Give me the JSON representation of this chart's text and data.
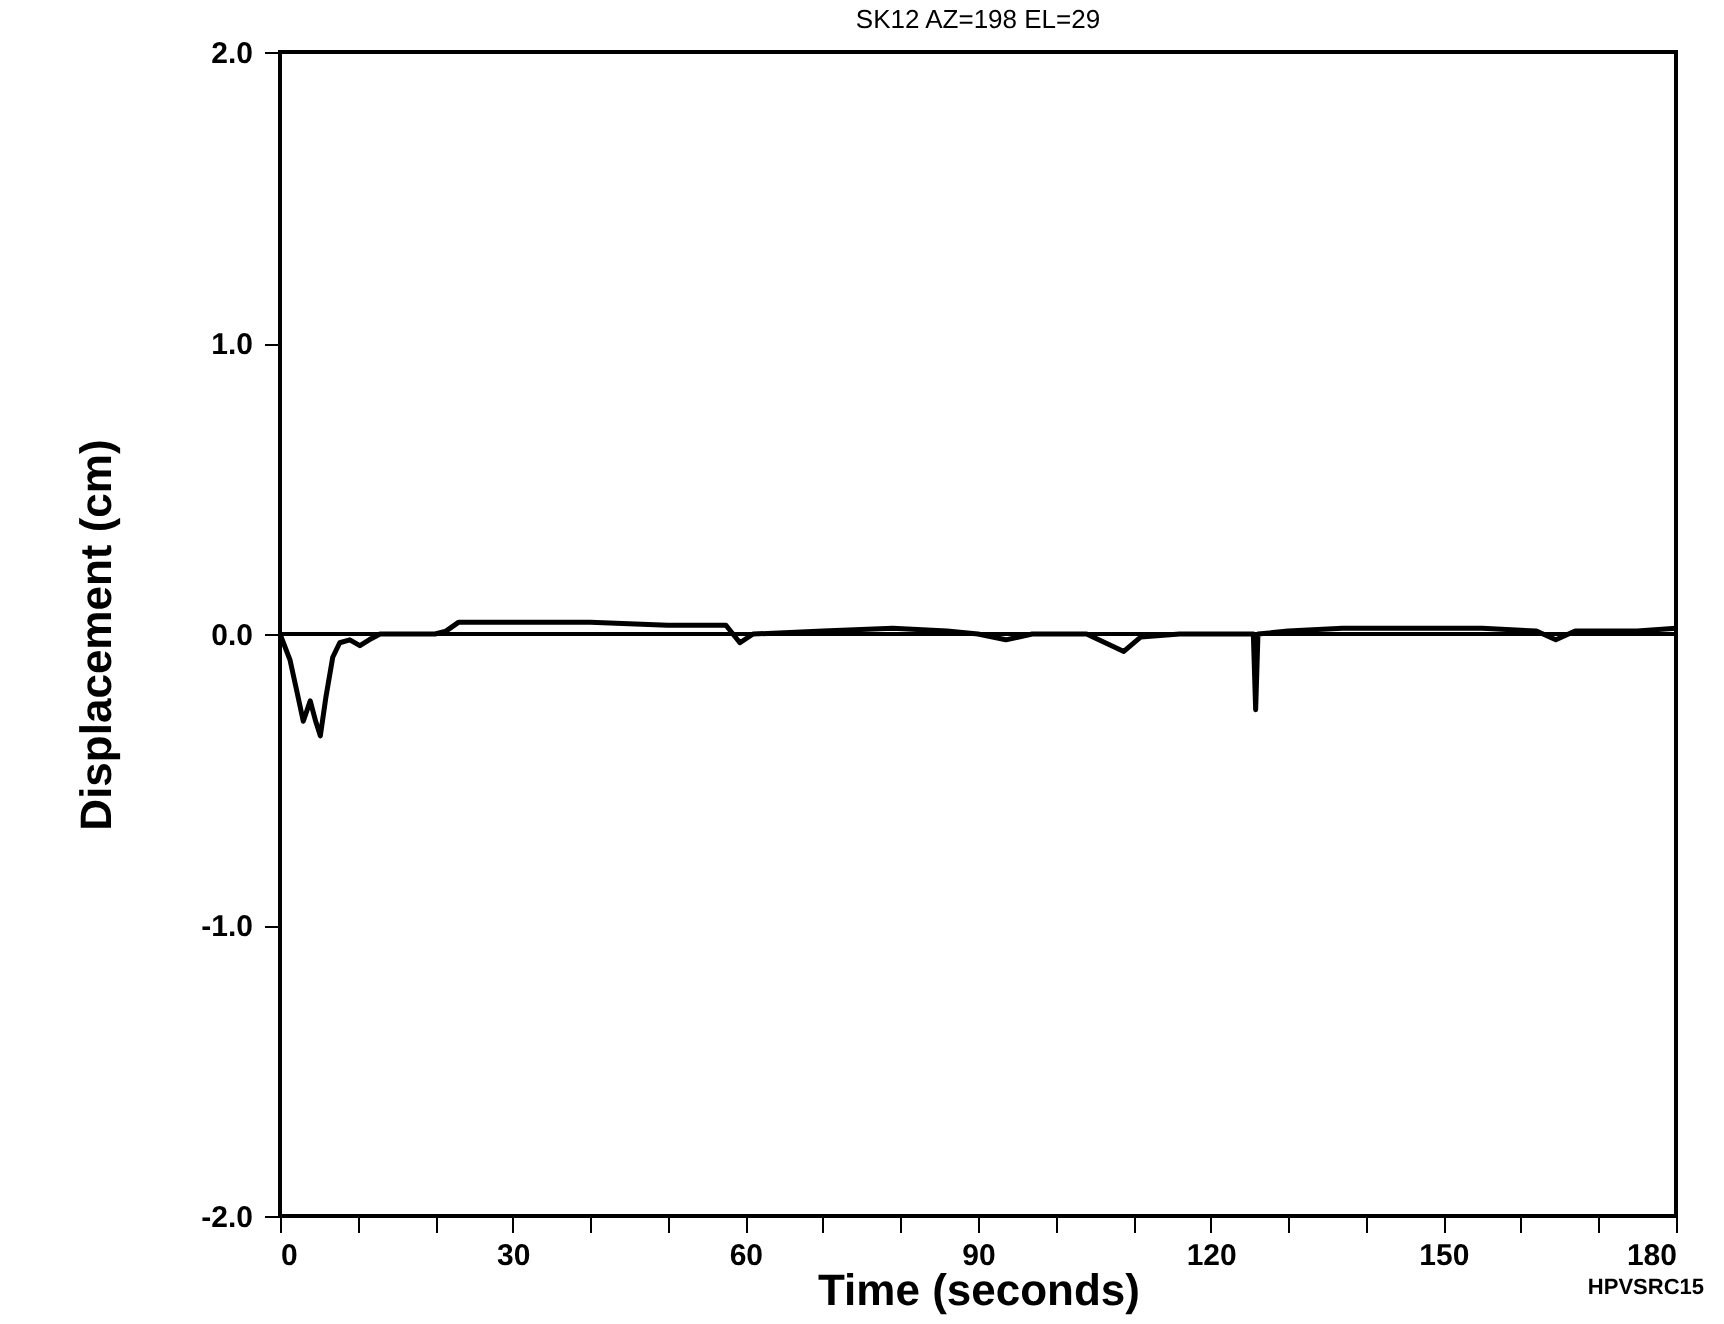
{
  "chart_data": {
    "type": "line",
    "title": "SK12 AZ=198 EL=29",
    "xlabel": "Time (seconds)",
    "ylabel": "Displacement (cm)",
    "annotations": [
      "HPVSRC15"
    ],
    "series": [
      {
        "color": "#000000",
        "x": [
          0,
          1.3,
          2.2,
          3.0,
          3.9,
          4.6,
          5.2,
          5.9,
          6.8,
          7.7,
          9.0,
          10.3,
          11.5,
          12.9,
          16,
          20,
          21.4,
          23,
          30,
          40,
          50,
          57.5,
          59.3,
          61,
          70,
          79,
          86,
          90,
          93.6,
          97,
          104,
          108.8,
          111,
          116,
          125.5,
          125.8,
          126.1,
          130,
          137,
          145,
          155,
          162,
          164.5,
          167,
          175,
          180
        ],
        "values": [
          0,
          -0.09,
          -0.2,
          -0.3,
          -0.23,
          -0.3,
          -0.35,
          -0.22,
          -0.08,
          -0.03,
          -0.02,
          -0.04,
          -0.02,
          0,
          0,
          0,
          0.01,
          0.04,
          0.04,
          0.04,
          0.03,
          0.03,
          -0.03,
          0,
          0.01,
          0.02,
          0.01,
          0,
          -0.02,
          0,
          0,
          -0.06,
          -0.01,
          0,
          0,
          -0.26,
          0,
          0.01,
          0.02,
          0.02,
          0.02,
          0.01,
          -0.02,
          0.01,
          0.01,
          0.02
        ]
      }
    ],
    "xlim": [
      0,
      180
    ],
    "ylim": [
      -2.0,
      2.0
    ],
    "xticks": [
      0,
      {
        "value": 10,
        "label": null
      },
      {
        "value": 20,
        "label": null
      },
      30,
      {
        "value": 40,
        "label": null
      },
      {
        "value": 50,
        "label": null
      },
      60,
      {
        "value": 70,
        "label": null
      },
      {
        "value": 80,
        "label": null
      },
      90,
      {
        "value": 100,
        "label": null
      },
      {
        "value": 110,
        "label": null
      },
      120,
      {
        "value": 130,
        "label": null
      },
      {
        "value": 140,
        "label": null
      },
      150,
      {
        "value": 160,
        "label": null
      },
      {
        "value": 170,
        "label": null
      },
      180
    ],
    "yticks": [
      {
        "value": -2.0,
        "label": "-2.0"
      },
      {
        "value": -1.0,
        "label": "-1.0"
      },
      {
        "value": 0,
        "label": "0.0"
      },
      {
        "value": 1.0,
        "label": "1.0"
      },
      {
        "value": 2.0,
        "label": "2.0"
      }
    ],
    "ref_lines": [
      {
        "axis": "y",
        "value": 0,
        "color": "#000000"
      }
    ],
    "grid": false,
    "marker": "none",
    "line_style": "solid"
  }
}
